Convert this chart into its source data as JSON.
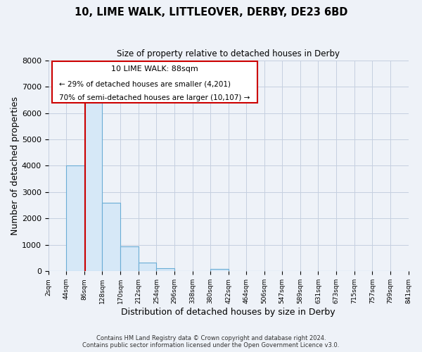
{
  "title1": "10, LIME WALK, LITTLEOVER, DERBY, DE23 6BD",
  "title2": "Size of property relative to detached houses in Derby",
  "xlabel": "Distribution of detached houses by size in Derby",
  "ylabel": "Number of detached properties",
  "bin_edges": [
    2,
    44,
    86,
    128,
    170,
    212,
    254,
    296,
    338,
    380,
    422,
    464,
    506,
    547,
    589,
    631,
    673,
    715,
    757,
    799,
    841
  ],
  "bar_heights": [
    0,
    4000,
    6550,
    2600,
    950,
    320,
    120,
    0,
    0,
    100,
    0,
    0,
    0,
    0,
    0,
    0,
    0,
    0,
    0,
    0
  ],
  "bar_color": "#d6e8f7",
  "bar_edgecolor": "#6aadd5",
  "vline_x": 88,
  "vline_color": "#cc0000",
  "ylim": [
    0,
    8000
  ],
  "xlim": [
    2,
    841
  ],
  "annotation_title": "10 LIME WALK: 88sqm",
  "annotation_line1": "← 29% of detached houses are smaller (4,201)",
  "annotation_line2": "70% of semi-detached houses are larger (10,107) →",
  "annotation_box_edgecolor": "#cc0000",
  "footer1": "Contains HM Land Registry data © Crown copyright and database right 2024.",
  "footer2": "Contains public sector information licensed under the Open Government Licence v3.0.",
  "background_color": "#eef2f8",
  "grid_color": "#c5cfe0",
  "tick_labels": [
    "2sqm",
    "44sqm",
    "86sqm",
    "128sqm",
    "170sqm",
    "212sqm",
    "254sqm",
    "296sqm",
    "338sqm",
    "380sqm",
    "422sqm",
    "464sqm",
    "506sqm",
    "547sqm",
    "589sqm",
    "631sqm",
    "673sqm",
    "715sqm",
    "757sqm",
    "799sqm",
    "841sqm"
  ]
}
